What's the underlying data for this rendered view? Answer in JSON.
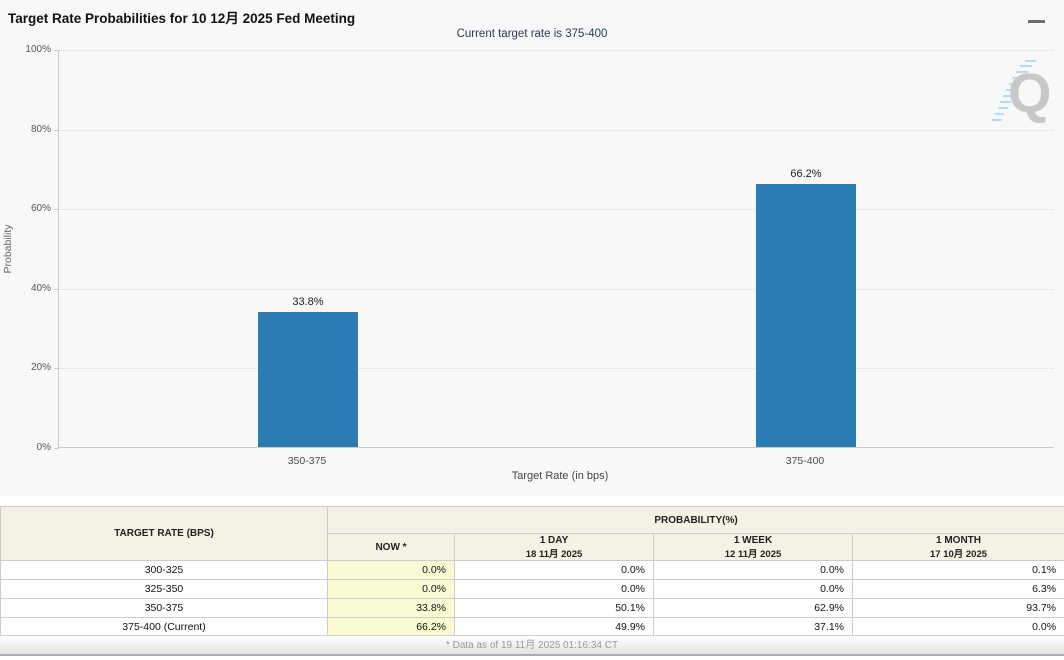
{
  "header": {
    "title": "Target Rate Probabilities for 10 12月 2025 Fed Meeting",
    "menu_icon": "hamburger-menu"
  },
  "chart_data": {
    "type": "bar",
    "title": "",
    "subtitle": "Current target rate is 375-400",
    "categories": [
      "350-375",
      "375-400"
    ],
    "values": [
      33.8,
      66.2
    ],
    "value_labels": [
      "33.8%",
      "66.2%"
    ],
    "xlabel": "Target Rate (in bps)",
    "ylabel": "Probability",
    "ylim": [
      0,
      100
    ],
    "yticks": [
      0,
      20,
      40,
      60,
      80,
      100
    ],
    "ytick_labels": [
      "0%",
      "20%",
      "40%",
      "60%",
      "80%",
      "100%"
    ],
    "grid": "dotted-horizontal",
    "legend": "none",
    "bar_color": "#2b7cb5"
  },
  "watermark": {
    "letter": "Q"
  },
  "table": {
    "corner_header": "TARGET RATE (BPS)",
    "group_header": "PROBABILITY(%)",
    "columns": [
      {
        "label": "NOW *",
        "sub": ""
      },
      {
        "label": "1 DAY",
        "sub": "18 11月 2025"
      },
      {
        "label": "1 WEEK",
        "sub": "12 11月 2025"
      },
      {
        "label": "1 MONTH",
        "sub": "17 10月 2025"
      }
    ],
    "rows": [
      {
        "rate": "300-325",
        "now": "0.0%",
        "day": "0.0%",
        "week": "0.0%",
        "month": "0.1%"
      },
      {
        "rate": "325-350",
        "now": "0.0%",
        "day": "0.0%",
        "week": "0.0%",
        "month": "6.3%"
      },
      {
        "rate": "350-375",
        "now": "33.8%",
        "day": "50.1%",
        "week": "62.9%",
        "month": "93.7%"
      },
      {
        "rate": "375-400 (Current)",
        "now": "66.2%",
        "day": "49.9%",
        "week": "37.1%",
        "month": "0.0%"
      }
    ]
  },
  "footer": {
    "note": "* Data as of 19 11月 2025 01:16:34 CT"
  },
  "colors": {
    "bar": "#2b7cb5",
    "subtitle": "#2b3a55",
    "table_header_bg": "#f5f1e3",
    "now_column_bg": "#fafad2",
    "panel_bg": "#f8f8f8"
  }
}
